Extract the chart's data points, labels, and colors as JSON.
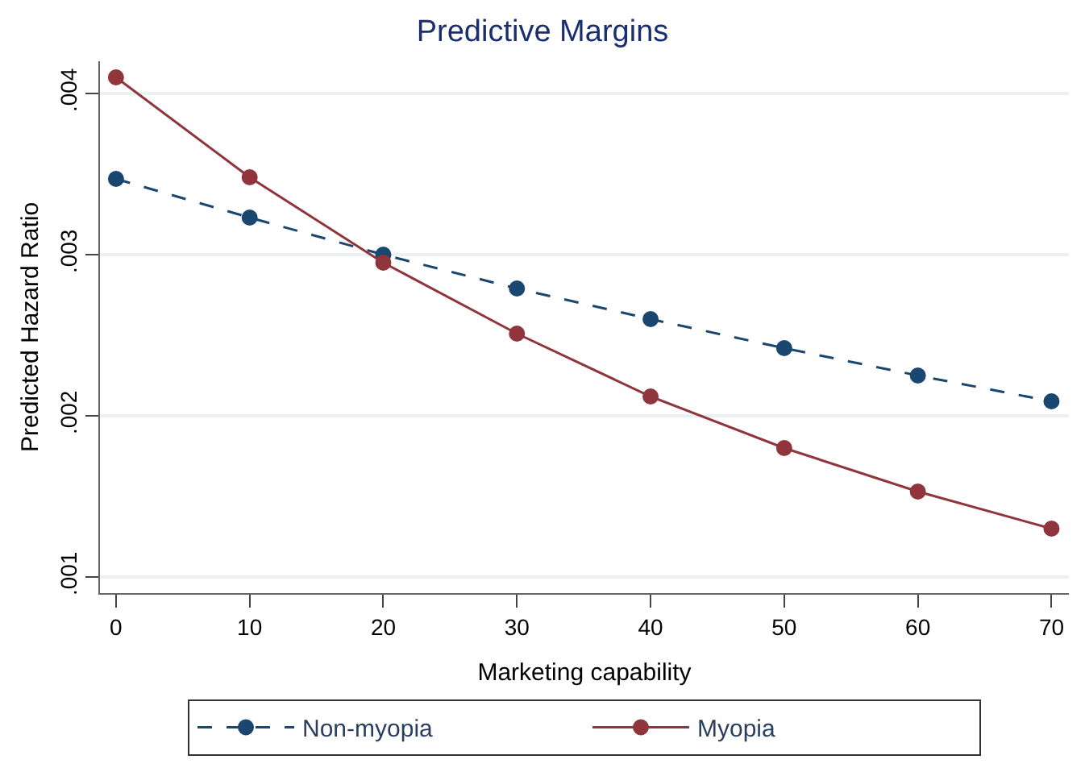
{
  "chart_data": {
    "type": "line",
    "title": "Predictive Margins",
    "xlabel": "Marketing capability",
    "ylabel": "Predicted Hazard Ratio",
    "x": [
      0,
      10,
      20,
      30,
      40,
      50,
      60,
      70
    ],
    "series": [
      {
        "name": "Non-myopia",
        "color": "#1a476f",
        "line_style": "dashed",
        "values": [
          0.00347,
          0.00323,
          0.003,
          0.00279,
          0.0026,
          0.00242,
          0.00225,
          0.00209
        ]
      },
      {
        "name": "Myopia",
        "color": "#90353b",
        "line_style": "solid",
        "values": [
          0.0041,
          0.00348,
          0.00295,
          0.00251,
          0.00212,
          0.0018,
          0.00153,
          0.0013
        ]
      }
    ],
    "xlim": [
      -1.2,
      71.3
    ],
    "ylim": [
      0.0009,
      0.0042
    ],
    "xticks": [
      0,
      10,
      20,
      30,
      40,
      50,
      60,
      70
    ],
    "yticks": [
      {
        "value": 0.001,
        "label": ".001"
      },
      {
        "value": 0.002,
        "label": ".002"
      },
      {
        "value": 0.003,
        "label": ".003"
      },
      {
        "value": 0.004,
        "label": ".004"
      }
    ],
    "grid": "y",
    "legend": "bottom",
    "marker": "circle"
  }
}
